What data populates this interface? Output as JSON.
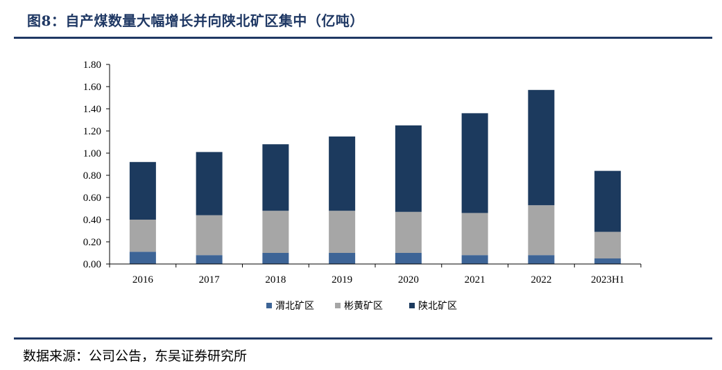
{
  "header": {
    "title": "图8：自产煤数量大幅增长并向陕北矿区集中（亿吨）"
  },
  "footer": {
    "source": "数据来源：公司公告，东吴证券研究所"
  },
  "colors": {
    "rule": "#1f3864",
    "weibei": "#3d6496",
    "binhuang": "#a6a6a6",
    "shanbei": "#1c3a5e"
  },
  "chart_data": {
    "type": "bar",
    "stacked": true,
    "categories": [
      "2016",
      "2017",
      "2018",
      "2019",
      "2020",
      "2021",
      "2022",
      "2023H1"
    ],
    "series": [
      {
        "name": "渭北矿区",
        "color": "#3d6496",
        "values": [
          0.11,
          0.08,
          0.1,
          0.1,
          0.1,
          0.08,
          0.08,
          0.05
        ]
      },
      {
        "name": "彬黄矿区",
        "color": "#a6a6a6",
        "values": [
          0.29,
          0.36,
          0.38,
          0.38,
          0.37,
          0.38,
          0.45,
          0.24
        ]
      },
      {
        "name": "陕北矿区",
        "color": "#1c3a5e",
        "values": [
          0.52,
          0.57,
          0.6,
          0.67,
          0.78,
          0.9,
          1.04,
          0.55
        ]
      }
    ],
    "ylim": [
      0,
      1.8
    ],
    "yticks": [
      "0.00",
      "0.20",
      "0.40",
      "0.60",
      "0.80",
      "1.00",
      "1.20",
      "1.40",
      "1.60",
      "1.80"
    ],
    "legend": "bottom",
    "grid": false
  }
}
